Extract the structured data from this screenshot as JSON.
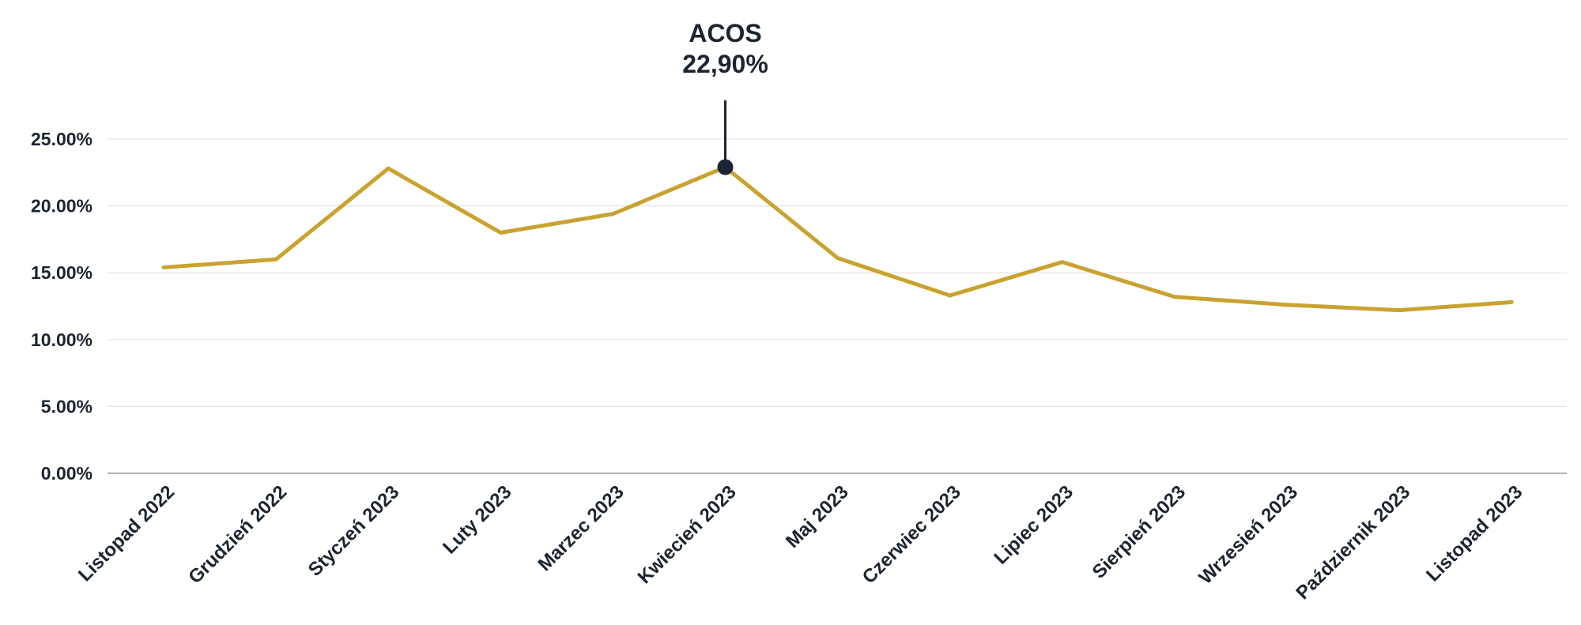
{
  "chart_data": {
    "type": "line",
    "title": "",
    "xlabel": "",
    "ylabel": "",
    "categories": [
      "Listopad 2022",
      "Grudzień 2022",
      "Styczeń 2023",
      "Luty 2023",
      "Marzec 2023",
      "Kwiecień 2023",
      "Maj 2023",
      "Czerwiec 2023",
      "Lipiec 2023",
      "Sierpień 2023",
      "Wrzesień 2023",
      "Październik 2023",
      "Listopad 2023"
    ],
    "series": [
      {
        "values": [
          15.4,
          16.0,
          22.8,
          18.0,
          19.4,
          22.9,
          16.1,
          13.3,
          15.8,
          13.2,
          12.6,
          12.2,
          12.8
        ]
      }
    ],
    "ylim": [
      0,
      25
    ],
    "y_ticks": [
      "0.00%",
      "5.00%",
      "10.00%",
      "15.00%",
      "20.00%",
      "25.00%"
    ],
    "grid": true,
    "annotation": {
      "category_index": 5,
      "label": "ACOS",
      "value_text": "22,90%"
    },
    "colors": {
      "line": "#c9a22f",
      "marker": "#1b2430",
      "grid": "#e3e3e3",
      "axis": "#999999",
      "text": "#1b2430"
    }
  }
}
